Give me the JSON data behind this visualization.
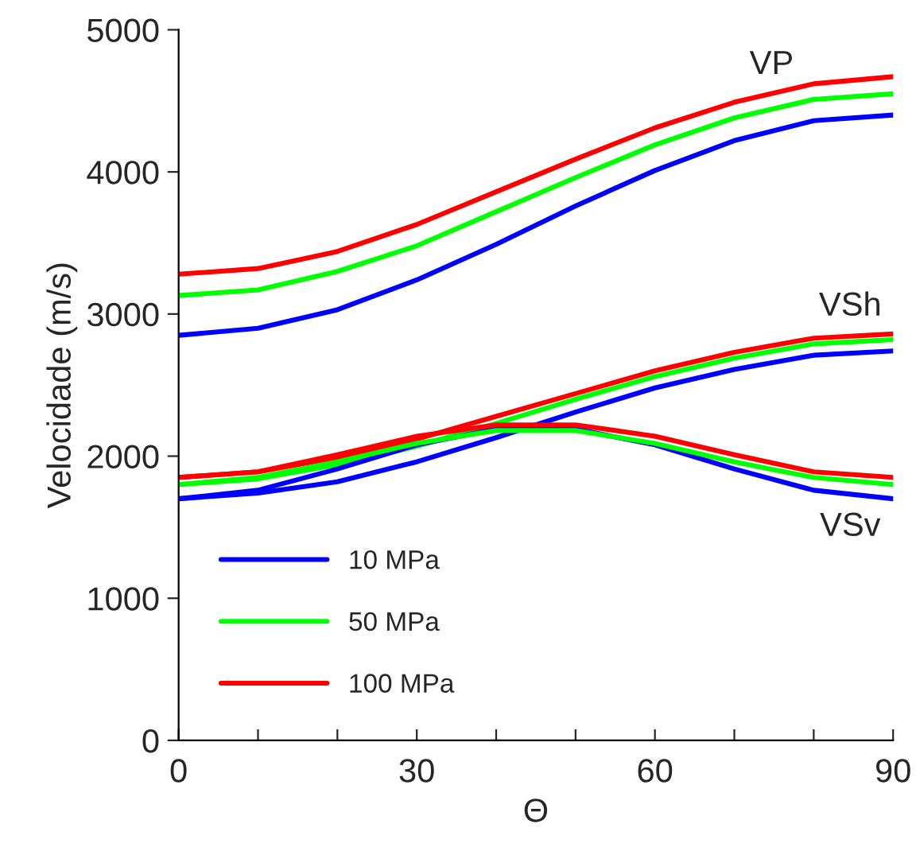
{
  "chart_data": {
    "type": "line",
    "xlabel": "Θ",
    "ylabel": "Velocidade (m/s)",
    "x": [
      0,
      10,
      20,
      30,
      40,
      50,
      60,
      70,
      80,
      90
    ],
    "xlim": [
      0,
      90
    ],
    "ylim": [
      0,
      5000
    ],
    "xticks": [
      0,
      {
        "value": 10,
        "label": null
      },
      {
        "value": 20,
        "label": null
      },
      30,
      {
        "value": 40,
        "label": null
      },
      {
        "value": 50,
        "label": null
      },
      60,
      {
        "value": 70,
        "label": null
      },
      {
        "value": 80,
        "label": null
      },
      90
    ],
    "yticks": [
      0,
      1000,
      2000,
      3000,
      4000,
      5000
    ],
    "grid": false,
    "legend": "bottom left",
    "marker": "none",
    "line_style": "solid",
    "series": [
      {
        "name": "10 MPa",
        "color": "#0000ff",
        "values": [
          2850,
          2900,
          3030,
          3240,
          3490,
          3760,
          4010,
          4220,
          4360,
          4400
        ]
      },
      {
        "name": "50 MPa",
        "color": "#00ff00",
        "values": [
          3130,
          3170,
          3300,
          3480,
          3720,
          3960,
          4190,
          4380,
          4510,
          4550
        ]
      },
      {
        "name": "100 MPa",
        "color": "#ff0000",
        "values": [
          3280,
          3320,
          3440,
          3630,
          3860,
          4090,
          4310,
          4490,
          4620,
          4670
        ]
      },
      {
        "color": "#0000ff",
        "values": [
          1700,
          1740,
          1820,
          1960,
          2130,
          2310,
          2480,
          2610,
          2710,
          2740
        ]
      },
      {
        "color": "#00ff00",
        "values": [
          1800,
          1840,
          1940,
          2070,
          2230,
          2400,
          2560,
          2690,
          2790,
          2820
        ]
      },
      {
        "color": "#ff0000",
        "values": [
          1850,
          1890,
          1990,
          2120,
          2280,
          2440,
          2600,
          2730,
          2830,
          2860
        ]
      },
      {
        "color": "#0000ff",
        "values": [
          1700,
          1760,
          1910,
          2080,
          2190,
          2190,
          2080,
          1910,
          1760,
          1700
        ]
      },
      {
        "color": "#00ff00",
        "values": [
          1800,
          1850,
          1960,
          2090,
          2180,
          2180,
          2090,
          1960,
          1850,
          1800
        ]
      },
      {
        "color": "#ff0000",
        "values": [
          1850,
          1890,
          2010,
          2140,
          2220,
          2220,
          2140,
          2010,
          1890,
          1850
        ]
      }
    ],
    "annotations": [
      "VP",
      "VSh",
      "VSv"
    ]
  }
}
